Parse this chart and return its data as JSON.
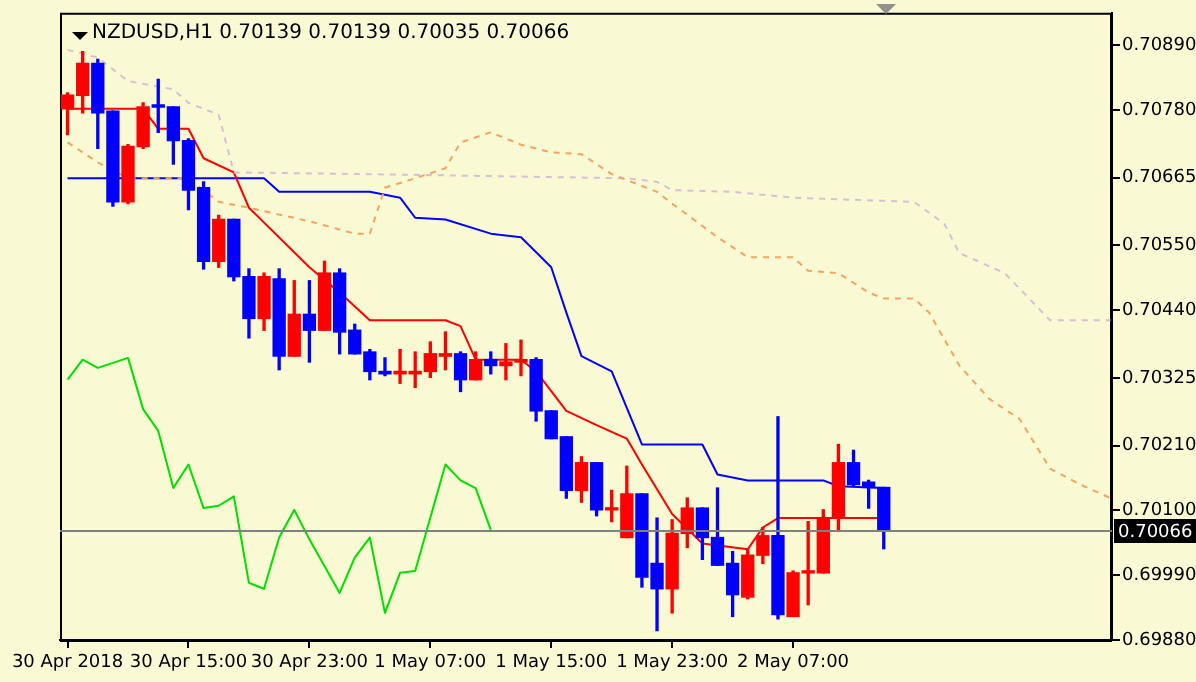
{
  "chart_data": {
    "type": "candlestick",
    "title": "NZDUSD,H1 0.70139 0.70139 0.70035 0.70066",
    "x": [
      "2018-04-30T07:00",
      "2018-04-30T08:00",
      "2018-04-30T09:00",
      "2018-04-30T10:00",
      "2018-04-30T11:00",
      "2018-04-30T12:00",
      "2018-04-30T13:00",
      "2018-04-30T14:00",
      "2018-04-30T15:00",
      "2018-04-30T16:00",
      "2018-04-30T17:00",
      "2018-04-30T18:00",
      "2018-04-30T19:00",
      "2018-04-30T20:00",
      "2018-04-30T21:00",
      "2018-04-30T22:00",
      "2018-04-30T23:00",
      "2018-05-01T00:00",
      "2018-05-01T01:00",
      "2018-05-01T02:00",
      "2018-05-01T03:00",
      "2018-05-01T04:00",
      "2018-05-01T05:00",
      "2018-05-01T06:00",
      "2018-05-01T07:00",
      "2018-05-01T08:00",
      "2018-05-01T09:00",
      "2018-05-01T10:00",
      "2018-05-01T11:00",
      "2018-05-01T12:00",
      "2018-05-01T13:00",
      "2018-05-01T14:00",
      "2018-05-01T15:00",
      "2018-05-01T16:00",
      "2018-05-01T17:00",
      "2018-05-01T18:00",
      "2018-05-01T19:00",
      "2018-05-01T20:00",
      "2018-05-01T21:00",
      "2018-05-01T22:00",
      "2018-05-01T23:00",
      "2018-05-02T00:00",
      "2018-05-02T01:00",
      "2018-05-02T02:00",
      "2018-05-02T03:00",
      "2018-05-02T04:00",
      "2018-05-02T05:00",
      "2018-05-02T06:00",
      "2018-05-02T07:00",
      "2018-05-02T08:00",
      "2018-05-02T09:00",
      "2018-05-02T10:00",
      "2018-05-02T11:00",
      "2018-05-02T12:00",
      "2018-05-02T13:00"
    ],
    "ohlc": [
      [
        0.70782,
        0.70809,
        0.70738,
        0.70805
      ],
      [
        0.70805,
        0.70879,
        0.70775,
        0.70859
      ],
      [
        0.70859,
        0.70866,
        0.70715,
        0.70775
      ],
      [
        0.70778,
        0.70778,
        0.70617,
        0.70624
      ],
      [
        0.70624,
        0.70721,
        0.70621,
        0.70718
      ],
      [
        0.70718,
        0.70792,
        0.70715,
        0.70785
      ],
      [
        0.70785,
        0.70832,
        0.70742,
        0.70785
      ],
      [
        0.70785,
        0.70785,
        0.70688,
        0.70728
      ],
      [
        0.70728,
        0.70731,
        0.70611,
        0.70644
      ],
      [
        0.70648,
        0.70658,
        0.7051,
        0.70523
      ],
      [
        0.70523,
        0.70601,
        0.70513,
        0.70594
      ],
      [
        0.70594,
        0.70594,
        0.7049,
        0.70497
      ],
      [
        0.70497,
        0.7051,
        0.70393,
        0.70426
      ],
      [
        0.70426,
        0.70503,
        0.70406,
        0.70497
      ],
      [
        0.70493,
        0.7051,
        0.70339,
        0.70362
      ],
      [
        0.70362,
        0.7049,
        0.70362,
        0.70433
      ],
      [
        0.70433,
        0.7049,
        0.70352,
        0.70406
      ],
      [
        0.70406,
        0.70523,
        0.70406,
        0.70503
      ],
      [
        0.70503,
        0.7051,
        0.70366,
        0.70403
      ],
      [
        0.70406,
        0.70416,
        0.70366,
        0.70366
      ],
      [
        0.70369,
        0.70373,
        0.70322,
        0.70336
      ],
      [
        0.70336,
        0.70359,
        0.70329,
        0.70332
      ],
      [
        0.70332,
        0.70373,
        0.70316,
        0.70336
      ],
      [
        0.70332,
        0.70369,
        0.70309,
        0.70336
      ],
      [
        0.70336,
        0.70386,
        0.70326,
        0.70366
      ],
      [
        0.70362,
        0.70403,
        0.70339,
        0.70366
      ],
      [
        0.70366,
        0.70369,
        0.70302,
        0.70322
      ],
      [
        0.70322,
        0.70369,
        0.70322,
        0.70356
      ],
      [
        0.70356,
        0.70369,
        0.70332,
        0.70346
      ],
      [
        0.70346,
        0.70383,
        0.70322,
        0.70352
      ],
      [
        0.70352,
        0.70389,
        0.70329,
        0.70356
      ],
      [
        0.70356,
        0.70359,
        0.70252,
        0.70269
      ],
      [
        0.70269,
        0.70269,
        0.70222,
        0.70222
      ],
      [
        0.70225,
        0.70225,
        0.70121,
        0.70134
      ],
      [
        0.70134,
        0.70191,
        0.70114,
        0.70181
      ],
      [
        0.70181,
        0.70181,
        0.70091,
        0.70101
      ],
      [
        0.70101,
        0.70134,
        0.70081,
        0.70104
      ],
      [
        0.70054,
        0.70175,
        0.70054,
        0.70128
      ],
      [
        0.70128,
        0.70128,
        0.6997,
        0.69987
      ],
      [
        0.7001,
        0.70087,
        0.69896,
        0.69967
      ],
      [
        0.69967,
        0.70084,
        0.69926,
        0.70061
      ],
      [
        0.70061,
        0.70121,
        0.70037,
        0.70104
      ],
      [
        0.70104,
        0.70104,
        0.70017,
        0.70054
      ],
      [
        0.70054,
        0.70138,
        0.70007,
        0.70007
      ],
      [
        0.7001,
        0.7003,
        0.6992,
        0.69957
      ],
      [
        0.69953,
        0.70034,
        0.6995,
        0.70024
      ],
      [
        0.70024,
        0.70071,
        0.7001,
        0.70057
      ],
      [
        0.70057,
        0.70259,
        0.69916,
        0.69923
      ],
      [
        0.6992,
        0.69997,
        0.6992,
        0.69994
      ],
      [
        0.69994,
        0.70081,
        0.6994,
        0.69997
      ],
      [
        0.69994,
        0.70101,
        0.69994,
        0.70087
      ],
      [
        0.70087,
        0.70212,
        0.70067,
        0.70181
      ],
      [
        0.70181,
        0.70202,
        0.70141,
        0.70144
      ],
      [
        0.70148,
        0.70151,
        0.70104,
        0.70139
      ],
      [
        0.70139,
        0.70139,
        0.70035,
        0.70066
      ]
    ],
    "colors": [
      "#ff0000",
      "#ff0000",
      "#0000ff",
      "#0000ff",
      "#ff0000",
      "#ff0000",
      "#0000ff",
      "#0000ff",
      "#0000ff",
      "#0000ff",
      "#ff0000",
      "#0000ff",
      "#0000ff",
      "#ff0000",
      "#0000ff",
      "#ff0000",
      "#0000ff",
      "#ff0000",
      "#0000ff",
      "#0000ff",
      "#0000ff",
      "#0000ff",
      "#ff0000",
      "#ff0000",
      "#ff0000",
      "#ff0000",
      "#0000ff",
      "#ff0000",
      "#0000ff",
      "#ff0000",
      "#ff0000",
      "#0000ff",
      "#0000ff",
      "#0000ff",
      "#ff0000",
      "#0000ff",
      "#ff0000",
      "#ff0000",
      "#0000ff",
      "#0000ff",
      "#ff0000",
      "#ff0000",
      "#0000ff",
      "#0000ff",
      "#0000ff",
      "#ff0000",
      "#ff0000",
      "#0000ff",
      "#ff0000",
      "#ff0000",
      "#ff0000",
      "#ff0000",
      "#0000ff",
      "#0000ff",
      "#0000ff"
    ],
    "series": [
      {
        "type": "line",
        "color": "#ff0000",
        "x": [
          "2018-04-30T07:00",
          "2018-04-30T12:00",
          "2018-04-30T13:00",
          "2018-04-30T15:00",
          "2018-04-30T16:00",
          "2018-04-30T18:00",
          "2018-04-30T19:00",
          "2018-04-30T23:00",
          "2018-05-01T01:00",
          "2018-05-01T03:00",
          "2018-05-01T08:00",
          "2018-05-01T09:00",
          "2018-05-01T10:00",
          "2018-05-01T13:00",
          "2018-05-01T14:00",
          "2018-05-01T16:00",
          "2018-05-01T18:00",
          "2018-05-01T20:00",
          "2018-05-01T21:00",
          "2018-05-01T23:00",
          "2018-05-02T01:00",
          "2018-05-02T04:00",
          "2018-05-02T05:00",
          "2018-05-02T06:00",
          "2018-05-02T13:00"
        ],
        "values": [
          0.70782,
          0.70782,
          0.70748,
          0.70748,
          0.70698,
          0.70674,
          0.70614,
          0.70513,
          0.7047,
          0.70423,
          0.70423,
          0.70413,
          0.70356,
          0.70356,
          0.70336,
          0.70269,
          0.70245,
          0.70222,
          0.70178,
          0.70094,
          0.70044,
          0.70034,
          0.70071,
          0.70087,
          0.70087
        ]
      },
      {
        "type": "line",
        "color": "#0000ff",
        "x": [
          "2018-04-30T07:00",
          "2018-04-30T20:00",
          "2018-04-30T21:00",
          "2018-05-01T03:00",
          "2018-05-01T05:00",
          "2018-05-01T06:00",
          "2018-05-01T08:00",
          "2018-05-01T11:00",
          "2018-05-01T13:00",
          "2018-05-01T15:00",
          "2018-05-01T16:00",
          "2018-05-01T17:00",
          "2018-05-01T19:00",
          "2018-05-01T21:00",
          "2018-05-02T01:00",
          "2018-05-02T02:00",
          "2018-05-02T04:00",
          "2018-05-02T09:00",
          "2018-05-02T10:00",
          "2018-05-02T13:00"
        ],
        "values": [
          0.70664,
          0.70664,
          0.70641,
          0.70641,
          0.70631,
          0.70597,
          0.70594,
          0.7057,
          0.70564,
          0.70513,
          0.70436,
          0.70362,
          0.70336,
          0.70212,
          0.70212,
          0.70161,
          0.70151,
          0.70151,
          0.70141,
          0.70138
        ]
      },
      {
        "type": "line",
        "color": "#00e000",
        "x": [
          "2018-04-30T07:00",
          "2018-04-30T08:00",
          "2018-04-30T09:00",
          "2018-04-30T11:00",
          "2018-04-30T12:00",
          "2018-04-30T13:00",
          "2018-04-30T14:00",
          "2018-04-30T15:00",
          "2018-04-30T16:00",
          "2018-04-30T17:00",
          "2018-04-30T18:00",
          "2018-04-30T19:00",
          "2018-04-30T20:00",
          "2018-04-30T21:00",
          "2018-04-30T22:00",
          "2018-04-30T23:00",
          "2018-05-01T01:00",
          "2018-05-01T02:00",
          "2018-05-01T03:00",
          "2018-05-01T04:00",
          "2018-05-01T05:00",
          "2018-05-01T06:00",
          "2018-05-01T08:00",
          "2018-05-01T09:00",
          "2018-05-01T10:00",
          "2018-05-01T11:00"
        ],
        "values": [
          0.70322,
          0.70356,
          0.70342,
          0.70359,
          0.70272,
          0.70235,
          0.70138,
          0.70178,
          0.70104,
          0.70108,
          0.70124,
          0.69977,
          0.69967,
          0.70054,
          0.70101,
          0.70051,
          0.6996,
          0.7002,
          0.70054,
          0.69926,
          0.69994,
          0.69997,
          0.70178,
          0.70151,
          0.70138,
          0.70067
        ]
      },
      {
        "type": "line",
        "color": "#f4a460",
        "line_style": "dashed",
        "x": [
          "2018-04-30T07:00",
          "2018-04-30T09:00",
          "2018-04-30T11:00",
          "2018-04-30T15:00",
          "2018-04-30T17:00",
          "2018-04-30T19:00",
          "2018-04-30T23:00",
          "2018-05-01T02:00",
          "2018-05-01T03:00",
          "2018-05-01T04:00",
          "2018-05-01T06:00",
          "2018-05-01T08:00",
          "2018-05-01T09:00",
          "2018-05-01T11:00",
          "2018-05-01T13:00",
          "2018-05-01T15:00",
          "2018-05-01T17:00",
          "2018-05-01T19:00",
          "2018-05-01T22:00",
          "2018-05-01T23:00",
          "2018-05-02T02:00",
          "2018-05-02T04:00",
          "2018-05-02T07:00",
          "2018-05-02T08:00",
          "2018-05-02T10:00",
          "2018-05-02T12:00",
          "2018-05-02T13:00",
          "2018-05-02T15:00",
          "2018-05-02T16:00",
          "2018-05-02T18:00",
          "2018-05-02T20:00",
          "2018-05-02T22:00",
          "2018-05-03T00:00",
          "2018-05-03T02:00",
          "2018-05-03T04:00"
        ],
        "values": [
          0.70725,
          0.70691,
          0.70664,
          0.70664,
          0.70624,
          0.70614,
          0.70591,
          0.7057,
          0.7057,
          0.70648,
          0.70664,
          0.70681,
          0.70725,
          0.70742,
          0.70721,
          0.70708,
          0.70705,
          0.70671,
          0.70641,
          0.70621,
          0.70564,
          0.7053,
          0.7053,
          0.70507,
          0.70503,
          0.7047,
          0.7046,
          0.7046,
          0.70436,
          0.70346,
          0.70289,
          0.70255,
          0.70171,
          0.70144,
          0.70121
        ]
      },
      {
        "type": "line",
        "color": "#d8bfd8",
        "line_style": "dashed",
        "x": [
          "2018-04-30T07:00",
          "2018-04-30T09:00",
          "2018-04-30T11:00",
          "2018-04-30T14:00",
          "2018-04-30T15:00",
          "2018-04-30T17:00",
          "2018-04-30T18:00",
          "2018-05-01T03:00",
          "2018-05-01T20:00",
          "2018-05-01T22:00",
          "2018-05-01T23:00",
          "2018-05-02T03:00",
          "2018-05-02T07:00",
          "2018-05-02T15:00",
          "2018-05-02T17:00",
          "2018-05-02T18:00",
          "2018-05-02T21:00",
          "2018-05-03T00:00",
          "2018-05-03T04:00"
        ],
        "values": [
          0.70882,
          0.70869,
          0.70829,
          0.70815,
          0.70792,
          0.70772,
          0.70674,
          0.70671,
          0.70664,
          0.70658,
          0.70644,
          0.70641,
          0.70631,
          0.70624,
          0.70587,
          0.70537,
          0.70503,
          0.70423,
          0.70423
        ]
      }
    ],
    "xlim": [
      "2018-04-30T06:30",
      "2018-05-03T04:06"
    ],
    "xticks": [
      {
        "value": "2018-04-30T07:00",
        "label": "30 Apr 2018"
      },
      {
        "value": "2018-04-30T15:00",
        "label": "30 Apr 15:00"
      },
      {
        "value": "2018-04-30T23:00",
        "label": "30 Apr 23:00"
      },
      {
        "value": "2018-05-01T07:00",
        "label": "1 May 07:00"
      },
      {
        "value": "2018-05-01T15:00",
        "label": "1 May 15:00"
      },
      {
        "value": "2018-05-01T23:00",
        "label": "1 May 23:00"
      },
      {
        "value": "2018-05-02T07:00",
        "label": "2 May 07:00"
      }
    ],
    "ylim": [
      0.6988,
      0.70945
    ],
    "yticks": [
      {
        "value": 0.7089,
        "label": "0.70890"
      },
      {
        "value": 0.7078,
        "label": "0.70780"
      },
      {
        "value": 0.70665,
        "label": "0.70665"
      },
      {
        "value": 0.7055,
        "label": "0.70550"
      },
      {
        "value": 0.7044,
        "label": "0.70440"
      },
      {
        "value": 0.70325,
        "label": "0.70325"
      },
      {
        "value": 0.7021,
        "label": "0.70210"
      },
      {
        "value": 0.701,
        "label": "0.70100"
      },
      {
        "value": 0.6999,
        "label": "0.69990"
      },
      {
        "value": 0.6988,
        "label": "0.69880"
      }
    ],
    "ref_lines": [
      {
        "axis": "y",
        "value": 0.70066,
        "label": "0.70066",
        "color": "#808080"
      }
    ]
  }
}
